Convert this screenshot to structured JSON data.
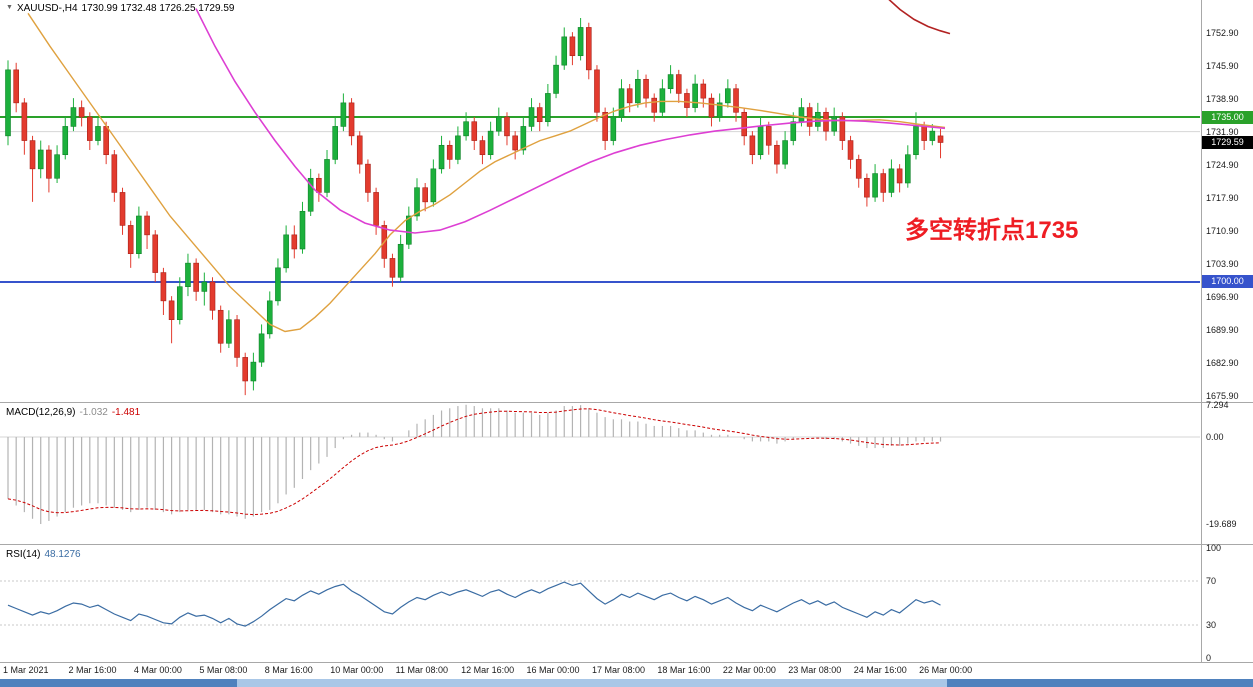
{
  "annotation": {
    "text": "多空转折点1735",
    "color": "#ee1d23"
  },
  "colors": {
    "up": "#1cb03c",
    "up_border": "#0e8228",
    "down": "#e33b2e",
    "down_border": "#a8221a",
    "ma_fast": "#dfa13f",
    "ma_slow": "#dd3fd3",
    "ma_long": "#b22222",
    "macd_hist": "#b3b3b3",
    "macd_signal": "#cc0000",
    "rsi_line": "#3a6ca3",
    "grid": "#d6d6d6"
  },
  "chart_data": {
    "type": "candlestick",
    "title_symbol": "XAUUSD-,H4",
    "title_ohlc": "1730.99 1732.48 1726.25 1729.59",
    "current_ohlc": {
      "open": 1730.99,
      "high": 1732.48,
      "low": 1726.25,
      "close": 1729.59
    },
    "price_axis_range": [
      1675,
      1758
    ],
    "price_ticks": [
      "1752.90",
      "1745.90",
      "1738.90",
      "1731.90",
      "1724.90",
      "1717.90",
      "1710.90",
      "1703.90",
      "1696.90",
      "1689.90",
      "1682.90",
      "1675.90"
    ],
    "grid_price": 1731.9,
    "time_labels": [
      "1 Mar 2021",
      "2 Mar 16:00",
      "4 Mar 00:00",
      "5 Mar 08:00",
      "8 Mar 16:00",
      "10 Mar 00:00",
      "11 Mar 08:00",
      "12 Mar 16:00",
      "16 Mar 00:00",
      "17 Mar 08:00",
      "18 Mar 16:00",
      "22 Mar 00:00",
      "23 Mar 08:00",
      "24 Mar 16:00",
      "26 Mar 00:00"
    ],
    "price_markers": {
      "resistance": {
        "label": "1735.00",
        "price": 1735.0,
        "color": "#2aa12a"
      },
      "support": {
        "label": "1700.00",
        "price": 1700.0,
        "color": "#3653cc"
      },
      "last": {
        "label": "1729.59",
        "price": 1729.59,
        "color": "#000000"
      }
    },
    "candles": [
      [
        1731,
        1747,
        1729,
        1745
      ],
      [
        1745,
        1746.5,
        1736,
        1738
      ],
      [
        1738,
        1739,
        1727,
        1730
      ],
      [
        1730,
        1731,
        1717,
        1724
      ],
      [
        1724,
        1730,
        1722,
        1728
      ],
      [
        1728,
        1729,
        1719,
        1722
      ],
      [
        1722,
        1729,
        1721,
        1727
      ],
      [
        1727,
        1735,
        1726,
        1733
      ],
      [
        1733,
        1739,
        1732,
        1737
      ],
      [
        1737,
        1738.5,
        1733,
        1735
      ],
      [
        1735,
        1736,
        1728,
        1730
      ],
      [
        1730,
        1735,
        1729,
        1733
      ],
      [
        1733,
        1734,
        1725,
        1727
      ],
      [
        1727,
        1728,
        1717,
        1719
      ],
      [
        1719,
        1720,
        1710,
        1712
      ],
      [
        1712,
        1713,
        1703,
        1706
      ],
      [
        1706,
        1716,
        1705,
        1714
      ],
      [
        1714,
        1715,
        1707,
        1710
      ],
      [
        1710,
        1711,
        1700,
        1702
      ],
      [
        1702,
        1703,
        1693,
        1696
      ],
      [
        1696,
        1697,
        1687,
        1692
      ],
      [
        1692,
        1701,
        1691,
        1699
      ],
      [
        1699,
        1706,
        1697,
        1704
      ],
      [
        1704,
        1705,
        1696,
        1698
      ],
      [
        1698,
        1702,
        1695,
        1700
      ],
      [
        1700,
        1701,
        1692,
        1694
      ],
      [
        1694,
        1695,
        1685,
        1687
      ],
      [
        1687,
        1694,
        1686,
        1692
      ],
      [
        1692,
        1693,
        1682,
        1684
      ],
      [
        1684,
        1685,
        1676,
        1679
      ],
      [
        1679,
        1685,
        1677,
        1683
      ],
      [
        1683,
        1691,
        1682,
        1689
      ],
      [
        1689,
        1698,
        1688,
        1696
      ],
      [
        1696,
        1705,
        1695,
        1703
      ],
      [
        1703,
        1712,
        1702,
        1710
      ],
      [
        1710,
        1712,
        1705,
        1707
      ],
      [
        1707,
        1717,
        1706,
        1715
      ],
      [
        1715,
        1724,
        1714,
        1722
      ],
      [
        1722,
        1723,
        1717,
        1719
      ],
      [
        1719,
        1728,
        1718,
        1726
      ],
      [
        1726,
        1735,
        1725,
        1733
      ],
      [
        1733,
        1740,
        1732,
        1738
      ],
      [
        1738,
        1739,
        1729,
        1731
      ],
      [
        1731,
        1732,
        1723,
        1725
      ],
      [
        1725,
        1726,
        1717,
        1719
      ],
      [
        1719,
        1720,
        1710,
        1712
      ],
      [
        1712,
        1713,
        1703,
        1705
      ],
      [
        1705,
        1706,
        1699,
        1701
      ],
      [
        1701,
        1710,
        1700,
        1708
      ],
      [
        1708,
        1716,
        1707,
        1714
      ],
      [
        1714,
        1722,
        1713,
        1720
      ],
      [
        1720,
        1721,
        1715,
        1717
      ],
      [
        1717,
        1726,
        1716,
        1724
      ],
      [
        1724,
        1731,
        1723,
        1729
      ],
      [
        1729,
        1730,
        1724,
        1726
      ],
      [
        1726,
        1733,
        1725,
        1731
      ],
      [
        1731,
        1736,
        1730,
        1734
      ],
      [
        1734,
        1735,
        1728,
        1730
      ],
      [
        1730,
        1731,
        1725,
        1727
      ],
      [
        1727,
        1734,
        1726,
        1732
      ],
      [
        1732,
        1737,
        1731,
        1735
      ],
      [
        1735,
        1736,
        1729,
        1731
      ],
      [
        1731,
        1732,
        1726,
        1728
      ],
      [
        1728,
        1735,
        1727,
        1733
      ],
      [
        1733,
        1739,
        1732,
        1737
      ],
      [
        1737,
        1738,
        1732,
        1734
      ],
      [
        1734,
        1742,
        1733,
        1740
      ],
      [
        1740,
        1748,
        1739,
        1746
      ],
      [
        1746,
        1754,
        1745,
        1752
      ],
      [
        1752,
        1753,
        1746,
        1748
      ],
      [
        1748,
        1756,
        1747,
        1754
      ],
      [
        1754,
        1755,
        1743,
        1745
      ],
      [
        1745,
        1746,
        1734,
        1736
      ],
      [
        1736,
        1737,
        1728,
        1730
      ],
      [
        1730,
        1737,
        1729,
        1735
      ],
      [
        1735,
        1743,
        1734,
        1741
      ],
      [
        1741,
        1742,
        1736,
        1738
      ],
      [
        1738,
        1745,
        1737,
        1743
      ],
      [
        1743,
        1744,
        1737,
        1739
      ],
      [
        1739,
        1740,
        1734,
        1736
      ],
      [
        1736,
        1743,
        1735,
        1741
      ],
      [
        1741,
        1746,
        1740,
        1744
      ],
      [
        1744,
        1745,
        1738,
        1740
      ],
      [
        1740,
        1741,
        1735,
        1737
      ],
      [
        1737,
        1744,
        1736,
        1742
      ],
      [
        1742,
        1743,
        1737,
        1739
      ],
      [
        1739,
        1740,
        1733,
        1735
      ],
      [
        1735,
        1740,
        1734,
        1738
      ],
      [
        1738,
        1743,
        1737,
        1741
      ],
      [
        1741,
        1742,
        1734,
        1736
      ],
      [
        1736,
        1737,
        1729,
        1731
      ],
      [
        1731,
        1732,
        1725,
        1727
      ],
      [
        1727,
        1735,
        1726,
        1733
      ],
      [
        1733,
        1734,
        1727,
        1729
      ],
      [
        1729,
        1730,
        1723,
        1725
      ],
      [
        1725,
        1732,
        1724,
        1730
      ],
      [
        1730,
        1736,
        1729,
        1734
      ],
      [
        1734,
        1739,
        1733,
        1737
      ],
      [
        1737,
        1738,
        1731,
        1733
      ],
      [
        1733,
        1738,
        1732,
        1736
      ],
      [
        1736,
        1737,
        1730,
        1732
      ],
      [
        1732,
        1737,
        1731,
        1735
      ],
      [
        1735,
        1736,
        1728,
        1730
      ],
      [
        1730,
        1731,
        1724,
        1726
      ],
      [
        1726,
        1727,
        1720,
        1722
      ],
      [
        1722,
        1723,
        1716,
        1718
      ],
      [
        1718,
        1725,
        1717,
        1723
      ],
      [
        1723,
        1724,
        1717,
        1719
      ],
      [
        1719,
        1726,
        1718,
        1724
      ],
      [
        1724,
        1725,
        1719,
        1721
      ],
      [
        1721,
        1729,
        1720,
        1727
      ],
      [
        1727,
        1736,
        1726,
        1733
      ],
      [
        1733,
        1734,
        1728,
        1730
      ],
      [
        1730,
        1733.5,
        1729,
        1732
      ],
      [
        1730.99,
        1732.48,
        1726.25,
        1729.59
      ]
    ],
    "ma_fast": [
      [
        28,
        1757
      ],
      [
        50,
        1750
      ],
      [
        70,
        1744
      ],
      [
        90,
        1738
      ],
      [
        110,
        1732
      ],
      [
        130,
        1726
      ],
      [
        150,
        1720
      ],
      [
        170,
        1714
      ],
      [
        190,
        1709
      ],
      [
        210,
        1704
      ],
      [
        230,
        1699
      ],
      [
        250,
        1695
      ],
      [
        270,
        1691
      ],
      [
        285,
        1689.5
      ],
      [
        300,
        1690
      ],
      [
        315,
        1692.5
      ],
      [
        330,
        1695.5
      ],
      [
        345,
        1699
      ],
      [
        360,
        1702.5
      ],
      [
        375,
        1706
      ],
      [
        390,
        1710
      ],
      [
        405,
        1713
      ],
      [
        420,
        1715
      ],
      [
        435,
        1716.5
      ],
      [
        450,
        1718.5
      ],
      [
        465,
        1721
      ],
      [
        480,
        1723.5
      ],
      [
        495,
        1725.5
      ],
      [
        510,
        1727
      ],
      [
        525,
        1728.5
      ],
      [
        540,
        1730
      ],
      [
        555,
        1731
      ],
      [
        570,
        1732
      ],
      [
        585,
        1733.5
      ],
      [
        600,
        1735
      ],
      [
        615,
        1736.3
      ],
      [
        630,
        1737.3
      ],
      [
        645,
        1738
      ],
      [
        660,
        1738.3
      ],
      [
        680,
        1738.3
      ],
      [
        700,
        1738
      ],
      [
        720,
        1737.5
      ],
      [
        740,
        1737
      ],
      [
        760,
        1736.4
      ],
      [
        780,
        1735.7
      ],
      [
        800,
        1735
      ],
      [
        820,
        1734.5
      ],
      [
        840,
        1734.2
      ],
      [
        860,
        1734.3
      ],
      [
        880,
        1734.4
      ],
      [
        900,
        1734
      ],
      [
        920,
        1733.4
      ],
      [
        945,
        1732.8
      ]
    ],
    "ma_slow": [
      [
        196,
        1758
      ],
      [
        215,
        1750
      ],
      [
        235,
        1742.5
      ],
      [
        255,
        1736
      ],
      [
        275,
        1730
      ],
      [
        295,
        1724.5
      ],
      [
        315,
        1719.5
      ],
      [
        340,
        1715.3
      ],
      [
        365,
        1712.5
      ],
      [
        390,
        1711
      ],
      [
        415,
        1710.4
      ],
      [
        440,
        1711
      ],
      [
        465,
        1712.8
      ],
      [
        490,
        1715.2
      ],
      [
        515,
        1717.8
      ],
      [
        540,
        1720.4
      ],
      [
        565,
        1723
      ],
      [
        590,
        1725.4
      ],
      [
        615,
        1727.4
      ],
      [
        640,
        1729
      ],
      [
        665,
        1730.2
      ],
      [
        690,
        1731.2
      ],
      [
        715,
        1732
      ],
      [
        740,
        1732.6
      ],
      [
        765,
        1733.2
      ],
      [
        790,
        1733.7
      ],
      [
        815,
        1734.1
      ],
      [
        840,
        1734.3
      ],
      [
        865,
        1734.1
      ],
      [
        890,
        1733.7
      ],
      [
        915,
        1733.2
      ],
      [
        945,
        1732.6
      ]
    ],
    "ma_long": [
      [
        886,
        1760.5
      ],
      [
        900,
        1757.8
      ],
      [
        914,
        1755.7
      ],
      [
        928,
        1754.2
      ],
      [
        940,
        1753.3
      ],
      [
        950,
        1752.7
      ]
    ],
    "indicators": {
      "macd": {
        "label": "MACD(12,26,9)",
        "value1": "-1.032",
        "value2": "-1.481",
        "ticks": [
          "7.294",
          "0.00",
          "-19.689"
        ],
        "histogram": [
          -14,
          -15.5,
          -17,
          -18.5,
          -19.689,
          -19,
          -18,
          -17,
          -16,
          -15.5,
          -15,
          -15,
          -15.5,
          -16,
          -16.5,
          -17,
          -16.5,
          -16,
          -16.5,
          -17,
          -17.5,
          -17,
          -16.5,
          -16.5,
          -16.5,
          -17,
          -17.5,
          -17.5,
          -18,
          -18.5,
          -18,
          -17,
          -16.5,
          -15,
          -13,
          -11.5,
          -9.5,
          -7.5,
          -6,
          -4.5,
          -2.5,
          -0.5,
          0.5,
          1,
          1,
          0.5,
          -0.5,
          -1,
          0,
          1.5,
          3,
          4,
          5,
          6,
          6.5,
          7,
          7.294,
          7,
          6.5,
          6.5,
          6.5,
          6,
          5.5,
          5.5,
          5.5,
          5,
          5.5,
          6,
          7,
          7,
          7.2,
          6.5,
          5.5,
          4.5,
          4,
          4,
          3.5,
          3.5,
          3,
          2.5,
          2.5,
          2.5,
          2,
          1.5,
          1.5,
          1,
          0.5,
          0.5,
          0.5,
          0,
          -0.5,
          -1,
          -1,
          -1,
          -1.5,
          -1,
          -0.5,
          0,
          0,
          0,
          -0.5,
          -0.5,
          -1,
          -1.5,
          -2,
          -2.5,
          -2.5,
          -2.5,
          -2,
          -2,
          -1.5,
          -1,
          -1,
          -1,
          -1.032
        ]
      },
      "rsi": {
        "label": "RSI(14)",
        "value": "48.1276",
        "ticks": [
          "100",
          "70",
          "30",
          "0"
        ],
        "levels": [
          70,
          30
        ],
        "values": [
          48,
          45,
          42,
          39,
          42,
          40,
          43,
          47,
          50,
          49,
          46,
          48,
          44,
          40,
          37,
          34,
          40,
          38,
          35,
          32,
          31,
          37,
          41,
          38,
          39,
          36,
          32,
          36,
          31,
          29,
          33,
          38,
          44,
          49,
          54,
          52,
          57,
          61,
          58,
          62,
          65,
          67,
          61,
          57,
          52,
          47,
          42,
          40,
          46,
          51,
          55,
          53,
          57,
          60,
          57,
          60,
          62,
          59,
          56,
          60,
          62,
          58,
          55,
          59,
          62,
          59,
          63,
          66,
          69,
          66,
          68,
          61,
          54,
          49,
          53,
          58,
          55,
          59,
          56,
          53,
          57,
          59,
          55,
          52,
          56,
          53,
          49,
          52,
          55,
          50,
          46,
          43,
          48,
          45,
          42,
          46,
          50,
          53,
          49,
          52,
          48,
          51,
          46,
          43,
          40,
          37,
          42,
          39,
          44,
          41,
          47,
          53,
          50,
          52,
          48.1276
        ]
      }
    }
  }
}
